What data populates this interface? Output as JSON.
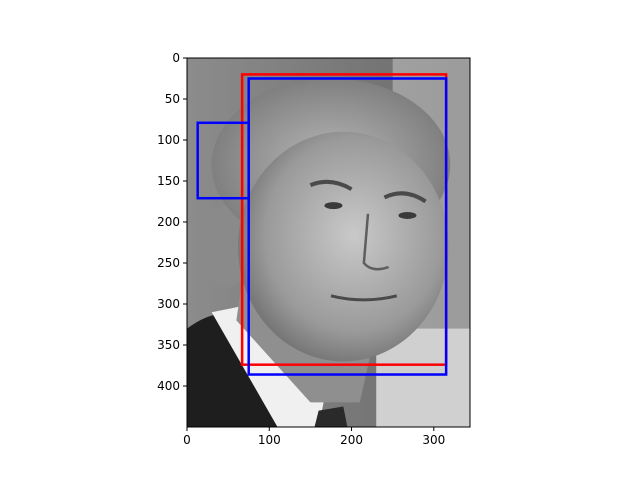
{
  "chart_data": {
    "type": "image",
    "xlim": [
      0,
      344
    ],
    "ylim": [
      450,
      0
    ],
    "x_ticks": [
      0,
      100,
      200,
      300
    ],
    "y_ticks": [
      0,
      50,
      100,
      150,
      200,
      250,
      300,
      350,
      400
    ],
    "image": {
      "content": "grayscale photo, face",
      "width": 344,
      "height": 450
    },
    "boxes": [
      {
        "color": "#ff0000",
        "x0": 67,
        "y0": 20,
        "x1": 315,
        "y1": 374
      },
      {
        "color": "#0000ff",
        "x0": 75,
        "y0": 25,
        "x1": 315,
        "y1": 386
      },
      {
        "color": "#0000ff",
        "x0": 13,
        "y0": 79,
        "x1": 75,
        "y1": 171
      }
    ],
    "grid": false
  }
}
